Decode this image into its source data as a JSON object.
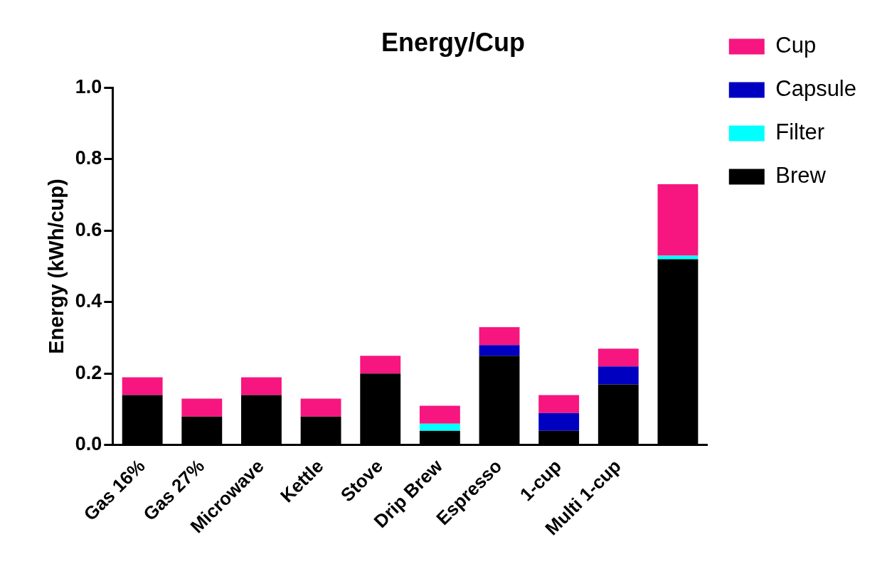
{
  "chart_data": {
    "type": "bar",
    "title": "Energy/Cup",
    "ylabel": "Energy (kWh/cup)",
    "categories": [
      "Gas 16%",
      "Gas 27%",
      "Microwave",
      "Kettle",
      "Stove",
      "Drip Brew",
      "Espresso",
      "1-cup",
      "Multi 1-cup",
      null
    ],
    "stacked": true,
    "series": [
      {
        "name": "Brew",
        "color": "#000000",
        "values": [
          0.14,
          0.08,
          0.14,
          0.08,
          0.2,
          0.04,
          0.25,
          0.04,
          0.17,
          0.52
        ]
      },
      {
        "name": "Filter",
        "color": "#00ffff",
        "values": [
          null,
          null,
          null,
          null,
          null,
          0.02,
          null,
          null,
          null,
          0.01
        ]
      },
      {
        "name": "Capsule",
        "color": "#0000c0",
        "values": [
          null,
          null,
          null,
          null,
          null,
          null,
          0.03,
          0.05,
          0.05,
          null
        ]
      },
      {
        "name": "Cup",
        "color": "#f7157f",
        "values": [
          0.05,
          0.05,
          0.05,
          0.05,
          0.05,
          0.05,
          0.05,
          0.05,
          0.05,
          0.2
        ]
      }
    ],
    "ylim": [
      0,
      1.0
    ],
    "yticks": [
      {
        "value": 0,
        "label": "0.0"
      },
      {
        "value": 0.2,
        "label": "0.2"
      },
      {
        "value": 0.4,
        "label": "0.4"
      },
      {
        "value": 0.6,
        "label": "0.6"
      },
      {
        "value": 0.8,
        "label": "0.8"
      },
      {
        "value": 1.0,
        "label": "1.0"
      }
    ],
    "grid": false,
    "legend": "top right"
  }
}
